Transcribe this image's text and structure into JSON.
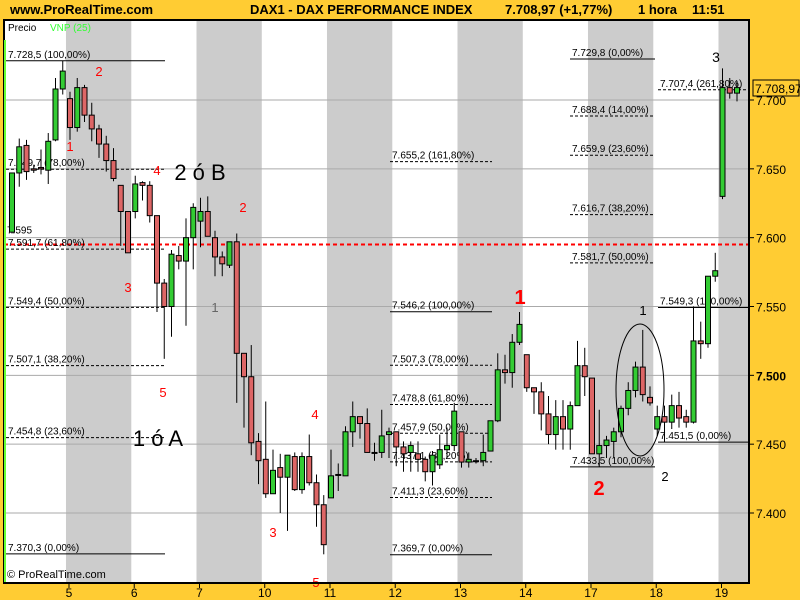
{
  "header": {
    "site": "www.ProRealTime.com",
    "instrument": "DAX1 - DAX PERFORMANCE INDEX",
    "last_price": "7.708,97 (+1,77%)",
    "timeframe": "1 hora",
    "time": "11:51"
  },
  "legend": {
    "price": "Precio",
    "indicator": "VNP (25)",
    "indicator_color": "#33ff33"
  },
  "price_tag": "7.708,97",
  "copyright": "© ProRealTime.com",
  "colors": {
    "up": "#33cc33",
    "down": "#dd6666",
    "band": "#cccccc",
    "background": "#ffcc33",
    "level_line": "#ff0000"
  },
  "chart_data": {
    "type": "candlestick",
    "timeframe": "1 hora",
    "y_axis": {
      "range": [
        7355,
        7765
      ],
      "ticks": [
        "7.400",
        "7.450",
        "7.500",
        "7.550",
        "7.600",
        "7.650",
        "7.700"
      ],
      "tick_values": [
        7400,
        7450,
        7500,
        7550,
        7600,
        7650,
        7700
      ],
      "bold_tick": "7.500",
      "grid": true
    },
    "x_axis": {
      "ticks": [
        "5",
        "6",
        "7",
        "10",
        "11",
        "12",
        "13",
        "14",
        "17",
        "18",
        "19"
      ],
      "shaded_days": [
        "5",
        "7",
        "11",
        "13",
        "17",
        "19"
      ]
    },
    "candles_ohlc": [
      [
        7604,
        7647,
        7603,
        7647
      ],
      [
        7647,
        7672,
        7637,
        7666
      ],
      [
        7667,
        7671,
        7642,
        7648
      ],
      [
        7650,
        7653,
        7647,
        7649
      ],
      [
        7651,
        7664,
        7646,
        7650
      ],
      [
        7649,
        7676,
        7639,
        7670
      ],
      [
        7671,
        7716,
        7670,
        7708
      ],
      [
        7708,
        7728.5,
        7704,
        7721
      ],
      [
        7701,
        7706,
        7671,
        7680
      ],
      [
        7680,
        7716,
        7677,
        7709
      ],
      [
        7709,
        7711,
        7684,
        7689
      ],
      [
        7689,
        7698,
        7670,
        7679
      ],
      [
        7679,
        7682,
        7658,
        7668
      ],
      [
        7668,
        7674,
        7648,
        7656
      ],
      [
        7656,
        7665,
        7641,
        7643
      ],
      [
        7638,
        7638,
        7594,
        7619
      ],
      [
        7619,
        7619,
        7589,
        7589
      ],
      [
        7619,
        7645,
        7614,
        7639
      ],
      [
        7640,
        7641,
        7627,
        7638
      ],
      [
        7638,
        7641,
        7611,
        7616
      ],
      [
        7616,
        7616,
        7546,
        7567
      ],
      [
        7567,
        7570,
        7512,
        7550
      ],
      [
        7550,
        7591,
        7528,
        7588
      ],
      [
        7587,
        7594,
        7577,
        7583
      ],
      [
        7583,
        7614,
        7536,
        7600
      ],
      [
        7600,
        7625,
        7577,
        7622
      ],
      [
        7612,
        7629,
        7593,
        7619
      ],
      [
        7619,
        7630,
        7601,
        7601
      ],
      [
        7600,
        7605,
        7572,
        7586
      ],
      [
        7586,
        7590,
        7572,
        7581
      ],
      [
        7580,
        7597,
        7578,
        7597
      ],
      [
        7597,
        7603,
        7480,
        7516
      ],
      [
        7516,
        7516,
        7462,
        7499
      ],
      [
        7499,
        7522,
        7442,
        7451
      ],
      [
        7452,
        7458,
        7421,
        7438
      ],
      [
        7439,
        7481,
        7411,
        7414
      ],
      [
        7414,
        7446,
        7414,
        7431
      ],
      [
        7433,
        7443,
        7400,
        7426
      ],
      [
        7426,
        7442,
        7387,
        7442
      ],
      [
        7441,
        7444,
        7416,
        7417
      ],
      [
        7417,
        7444,
        7414,
        7441
      ],
      [
        7441,
        7457,
        7420,
        7422
      ],
      [
        7422,
        7428,
        7390,
        7406
      ],
      [
        7406,
        7413,
        7370,
        7377
      ],
      [
        7411,
        7446,
        7411,
        7427
      ],
      [
        7428,
        7436,
        7416,
        7428
      ],
      [
        7427,
        7463,
        7427,
        7459
      ],
      [
        7459,
        7481,
        7448,
        7470
      ],
      [
        7470,
        7470,
        7454,
        7465
      ],
      [
        7465,
        7476,
        7444,
        7444
      ],
      [
        7444,
        7451,
        7438,
        7444
      ],
      [
        7444,
        7475,
        7440,
        7456
      ],
      [
        7457,
        7462,
        7440,
        7459
      ],
      [
        7459,
        7459,
        7434,
        7448
      ],
      [
        7448,
        7452,
        7430,
        7443
      ],
      [
        7444,
        7452,
        7430,
        7449
      ],
      [
        7443,
        7452,
        7430,
        7439
      ],
      [
        7439,
        7441,
        7423,
        7430
      ],
      [
        7430,
        7445,
        7420,
        7442
      ],
      [
        7435,
        7457,
        7432,
        7446
      ],
      [
        7446,
        7462,
        7440,
        7449
      ],
      [
        7449,
        7480,
        7445,
        7474
      ],
      [
        7459,
        7459,
        7433,
        7437
      ],
      [
        7437,
        7444,
        7433,
        7439
      ],
      [
        7438,
        7440,
        7436,
        7438
      ],
      [
        7438,
        7457,
        7434,
        7444
      ],
      [
        7445,
        7467,
        7445,
        7467
      ],
      [
        7467,
        7516,
        7466,
        7504
      ],
      [
        7504,
        7515,
        7494,
        7502
      ],
      [
        7502,
        7530,
        7491,
        7524
      ],
      [
        7524,
        7546,
        7522,
        7537
      ],
      [
        7515,
        7515,
        7488,
        7491
      ],
      [
        7491,
        7491,
        7472,
        7488
      ],
      [
        7488,
        7495,
        7460,
        7472
      ],
      [
        7472,
        7485,
        7450,
        7457
      ],
      [
        7457,
        7482,
        7446,
        7470
      ],
      [
        7470,
        7482,
        7446,
        7461
      ],
      [
        7461,
        7481,
        7446,
        7478
      ],
      [
        7478,
        7525,
        7478,
        7507
      ],
      [
        7507,
        7520,
        7485,
        7499
      ],
      [
        7498,
        7498,
        7443,
        7443
      ],
      [
        7443,
        7475,
        7433.5,
        7449
      ],
      [
        7449,
        7456,
        7440,
        7453
      ],
      [
        7452,
        7462,
        7440,
        7459
      ],
      [
        7459,
        7478,
        7455,
        7476
      ],
      [
        7476,
        7495,
        7471,
        7489
      ],
      [
        7489,
        7510,
        7484,
        7506
      ],
      [
        7506,
        7533,
        7481,
        7486
      ],
      [
        7484,
        7492,
        7478,
        7480
      ],
      [
        7461,
        7478,
        7456,
        7470
      ],
      [
        7470,
        7478,
        7451.5,
        7466
      ],
      [
        7466,
        7486,
        7461,
        7478
      ],
      [
        7478,
        7488,
        7462,
        7469
      ],
      [
        7470,
        7475,
        7462,
        7466
      ],
      [
        7466,
        7550,
        7465,
        7525
      ],
      [
        7525,
        7539,
        7512,
        7523
      ],
      [
        7523,
        7572,
        7520,
        7572
      ],
      [
        7572,
        7589,
        7568,
        7576
      ],
      [
        7630,
        7723,
        7628,
        7709
      ],
      [
        7709,
        7716,
        7701,
        7705
      ],
      [
        7705,
        7714,
        7699,
        7709
      ]
    ],
    "horizontal_level": {
      "label": "7.595",
      "value": 7595,
      "style": "red-dotted"
    },
    "fibonacci": [
      {
        "group": "left",
        "label": "7.728,5 (100,00%)",
        "value": 7728.5,
        "style": "solid"
      },
      {
        "group": "left",
        "label": "7.649,7 (78,00%)",
        "value": 7649.7,
        "style": "dashed"
      },
      {
        "group": "left",
        "label": "7.591,7 (61,80%)",
        "value": 7591.7,
        "style": "dashed"
      },
      {
        "group": "left",
        "label": "7.549,4 (50,00%)",
        "value": 7549.4,
        "style": "dashed"
      },
      {
        "group": "left",
        "label": "7.507,1 (38,20%)",
        "value": 7507.1,
        "style": "dashed"
      },
      {
        "group": "left",
        "label": "7.454,8 (23,60%)",
        "value": 7454.8,
        "style": "dashed"
      },
      {
        "group": "left",
        "label": "7.370,3 (0,00%)",
        "value": 7370.3,
        "style": "solid"
      },
      {
        "group": "middle",
        "label": "7.655,2 (161,80%)",
        "value": 7655.2,
        "style": "dashed"
      },
      {
        "group": "middle",
        "label": "7.546,2 (100,00%)",
        "value": 7546.2,
        "style": "solid"
      },
      {
        "group": "middle",
        "label": "7.507,3 (78,00%)",
        "value": 7507.3,
        "style": "dashed"
      },
      {
        "group": "middle",
        "label": "7.478,8 (61,80%)",
        "value": 7478.8,
        "style": "dashed"
      },
      {
        "group": "middle",
        "label": "7.457,9 (50,00%)",
        "value": 7457.9,
        "style": "dashed"
      },
      {
        "group": "middle",
        "label": "7.437,1 (38,20%)",
        "value": 7437.1,
        "style": "dashed"
      },
      {
        "group": "middle",
        "label": "7.411,3 (23,60%)",
        "value": 7411.3,
        "style": "dashed"
      },
      {
        "group": "middle",
        "label": "7.369,7 (0,00%)",
        "value": 7369.7,
        "style": "solid"
      },
      {
        "group": "right",
        "label": "7.729,8 (0,00%)",
        "value": 7729.8,
        "style": "solid"
      },
      {
        "group": "right",
        "label": "7.688,4 (14,00%)",
        "value": 7688.4,
        "style": "dashed"
      },
      {
        "group": "right",
        "label": "7.659,9 (23,60%)",
        "value": 7659.9,
        "style": "dashed"
      },
      {
        "group": "right",
        "label": "7.616,7 (38,20%)",
        "value": 7616.7,
        "style": "dashed"
      },
      {
        "group": "right",
        "label": "7.581,7 (50,00%)",
        "value": 7581.7,
        "style": "dashed"
      },
      {
        "group": "far-right",
        "label": "7.707,4 (261,80%)",
        "value": 7707.4,
        "style": "dashed"
      },
      {
        "group": "far-right",
        "label": "7.549,3 (100,00%)",
        "value": 7549.3,
        "style": "solid"
      },
      {
        "group": "far-right",
        "label": "7.451,5 (0,00%)",
        "value": 7451.5,
        "style": "solid"
      },
      {
        "group": "right",
        "label": "7.433,5 (100,00%)",
        "value": 7433.5,
        "style": "solid"
      }
    ],
    "annotations": [
      {
        "text": "2",
        "color": "#ff0000"
      },
      {
        "text": "1",
        "color": "#ff0000"
      },
      {
        "text": "4",
        "color": "#ff0000"
      },
      {
        "text": "2 ó B",
        "color": "#000000"
      },
      {
        "text": "2",
        "color": "#ff0000"
      },
      {
        "text": "3",
        "color": "#ff0000"
      },
      {
        "text": "1",
        "color": "#666666"
      },
      {
        "text": "5",
        "color": "#ff0000"
      },
      {
        "text": "1 ó A",
        "color": "#000000"
      },
      {
        "text": "4",
        "color": "#ff0000"
      },
      {
        "text": "3",
        "color": "#ff0000"
      },
      {
        "text": "5",
        "color": "#ff0000"
      },
      {
        "text": "1",
        "color": "#ff0000"
      },
      {
        "text": "2",
        "color": "#ff0000"
      },
      {
        "text": "1",
        "color": "#000000"
      },
      {
        "text": "2",
        "color": "#000000"
      },
      {
        "text": "3",
        "color": "#000000"
      }
    ]
  }
}
